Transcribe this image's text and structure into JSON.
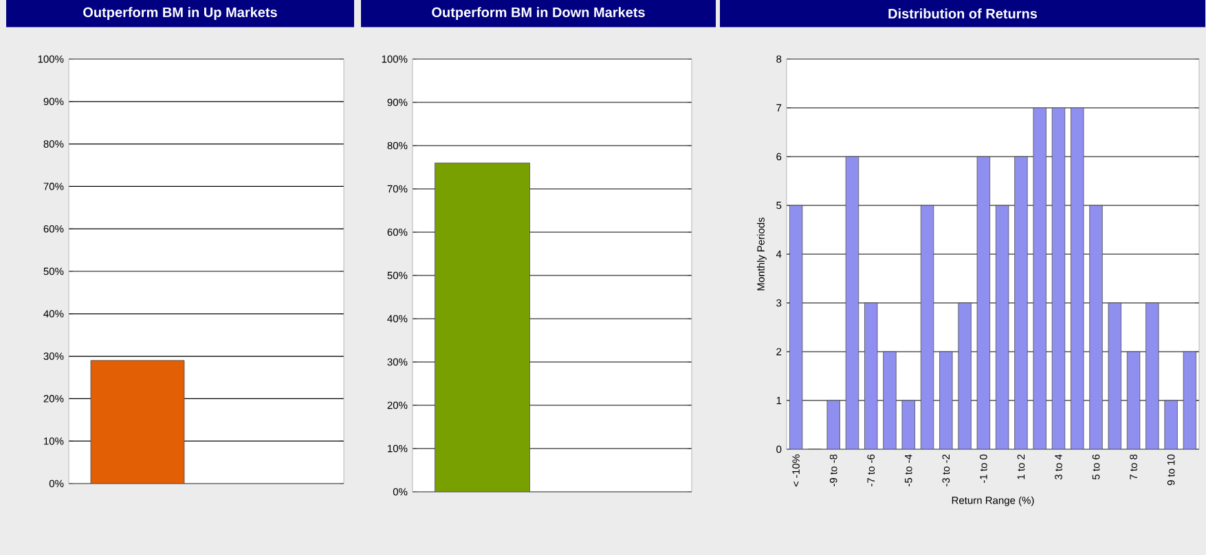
{
  "chart_data": [
    {
      "type": "bar",
      "title": "Outperform BM in Up Markets",
      "categories": [
        null,
        null
      ],
      "values": [
        29,
        null
      ],
      "color": "#e35f05",
      "ylim": [
        0,
        100
      ],
      "yticks": [
        {
          "value": 0,
          "label": "0%"
        },
        {
          "value": 10,
          "label": "10%"
        },
        {
          "value": 20,
          "label": "20%"
        },
        {
          "value": 30,
          "label": "30%"
        },
        {
          "value": 40,
          "label": "40%"
        },
        {
          "value": 50,
          "label": "50%"
        },
        {
          "value": 60,
          "label": "60%"
        },
        {
          "value": 70,
          "label": "70%"
        },
        {
          "value": 80,
          "label": "80%"
        },
        {
          "value": 90,
          "label": "90%"
        },
        {
          "value": 100,
          "label": "100%"
        }
      ],
      "grid": "y"
    },
    {
      "type": "bar",
      "title": "Outperform BM in Down Markets",
      "categories": [
        null,
        null
      ],
      "values": [
        76,
        null
      ],
      "color": "#78a000",
      "ylim": [
        0,
        100
      ],
      "yticks": [
        {
          "value": 0,
          "label": "0%"
        },
        {
          "value": 10,
          "label": "10%"
        },
        {
          "value": 20,
          "label": "20%"
        },
        {
          "value": 30,
          "label": "30%"
        },
        {
          "value": 40,
          "label": "40%"
        },
        {
          "value": 50,
          "label": "50%"
        },
        {
          "value": 60,
          "label": "60%"
        },
        {
          "value": 70,
          "label": "70%"
        },
        {
          "value": 80,
          "label": "80%"
        },
        {
          "value": 90,
          "label": "90%"
        },
        {
          "value": 100,
          "label": "100%"
        }
      ],
      "grid": "y"
    },
    {
      "type": "bar",
      "title": "Distribution of Returns",
      "xlabel": "Return Range (%)",
      "ylabel": "Monthly Periods",
      "categories": [
        "< -10%",
        null,
        "-9 to -8",
        null,
        "-7 to -6",
        null,
        "-5 to -4",
        null,
        "-3 to -2",
        null,
        "-1 to 0",
        null,
        "1 to 2",
        null,
        "3 to 4",
        null,
        "5 to 6",
        null,
        "7 to 8",
        null,
        "9 to 10",
        null
      ],
      "values": [
        5,
        0,
        1,
        6,
        3,
        2,
        1,
        5,
        2,
        3,
        6,
        5,
        6,
        7,
        7,
        7,
        5,
        3,
        2,
        3,
        1,
        2
      ],
      "color": "#8f8ff0",
      "ylim": [
        0,
        8
      ],
      "yticks": [
        0,
        1,
        2,
        3,
        4,
        5,
        6,
        7,
        8
      ],
      "grid": "y"
    }
  ]
}
